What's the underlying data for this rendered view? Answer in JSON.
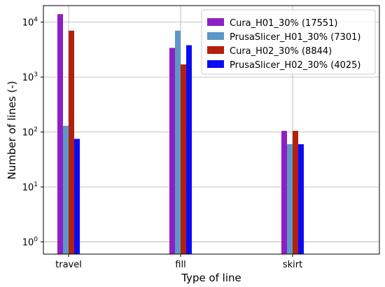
{
  "chart_data": {
    "type": "bar",
    "xlabel": "Type of line",
    "ylabel": "Number of lines (-)",
    "yscale": "log",
    "ylim": [
      0.6,
      20000
    ],
    "grid": true,
    "legend_placement": "top-right",
    "categories": [
      "travel",
      "fill",
      "skirt"
    ],
    "yticks": [
      {
        "value": 1,
        "base": "10",
        "exp": "0"
      },
      {
        "value": 10,
        "base": "10",
        "exp": "1"
      },
      {
        "value": 100,
        "base": "10",
        "exp": "2"
      },
      {
        "value": 1000,
        "base": "10",
        "exp": "3"
      },
      {
        "value": 10000,
        "base": "10",
        "exp": "4"
      }
    ],
    "series": [
      {
        "name": "Cura_H01_30% (17551)",
        "color": "#8e1fc4",
        "values": [
          14000,
          3400,
          105
        ]
      },
      {
        "name": "PrusaSlicer_H01_30% (7301)",
        "color": "#5b97c7",
        "values": [
          130,
          7000,
          60
        ]
      },
      {
        "name": "Cura_H02_30% (8844)",
        "color": "#b3200e",
        "values": [
          7000,
          1700,
          105
        ]
      },
      {
        "name": "PrusaSlicer_H02_30% (4025)",
        "color": "#0c0cf2",
        "values": [
          75,
          3800,
          60
        ]
      }
    ]
  }
}
